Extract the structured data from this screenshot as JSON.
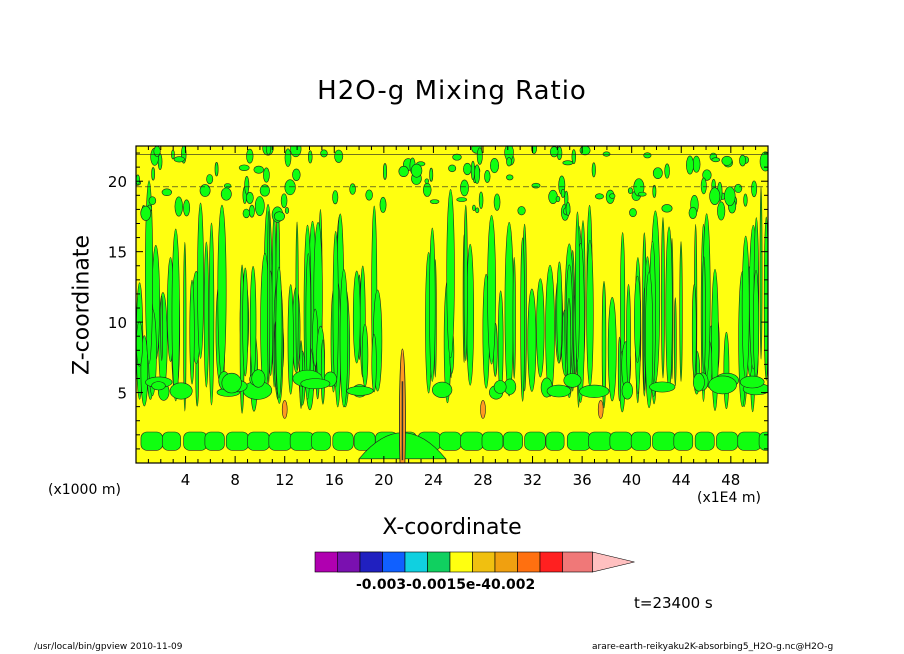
{
  "chart_data": {
    "type": "heatmap",
    "title": "H2O-g Mixing Ratio",
    "xlabel": "X-coordinate",
    "ylabel": "Z-coordinate",
    "x_unit_left": "(x1000 m)",
    "x_unit_right": "(x1E4 m)",
    "xlim": [
      0,
      51
    ],
    "ylim": [
      0,
      22.5
    ],
    "x_ticks": [
      "4",
      "8",
      "12",
      "16",
      "20",
      "24",
      "28",
      "32",
      "36",
      "40",
      "44",
      "48"
    ],
    "y_ticks": [
      "5",
      "10",
      "15",
      "20"
    ],
    "colorbar_label_text": "-0.003-0.0015e-40.002",
    "colorbar_colors": [
      "#b000b0",
      "#7a10b0",
      "#2020c0",
      "#1060ff",
      "#10d0e0",
      "#10d060",
      "#ffff10",
      "#f0c010",
      "#f0a010",
      "#ff7010",
      "#ff2020",
      "#f07878",
      "#ffc0c0"
    ],
    "fill_colors": {
      "background": "#ffff10",
      "patch": "#10ff10",
      "spot": "#ff9a20"
    },
    "time_label": "t=23400 s"
  },
  "footer": {
    "left": "/usr/local/bin/gpview   2010-11-09",
    "right": "arare-earth-reikyaku2K-absorbing5_H2O-g.nc@H2O-g"
  }
}
